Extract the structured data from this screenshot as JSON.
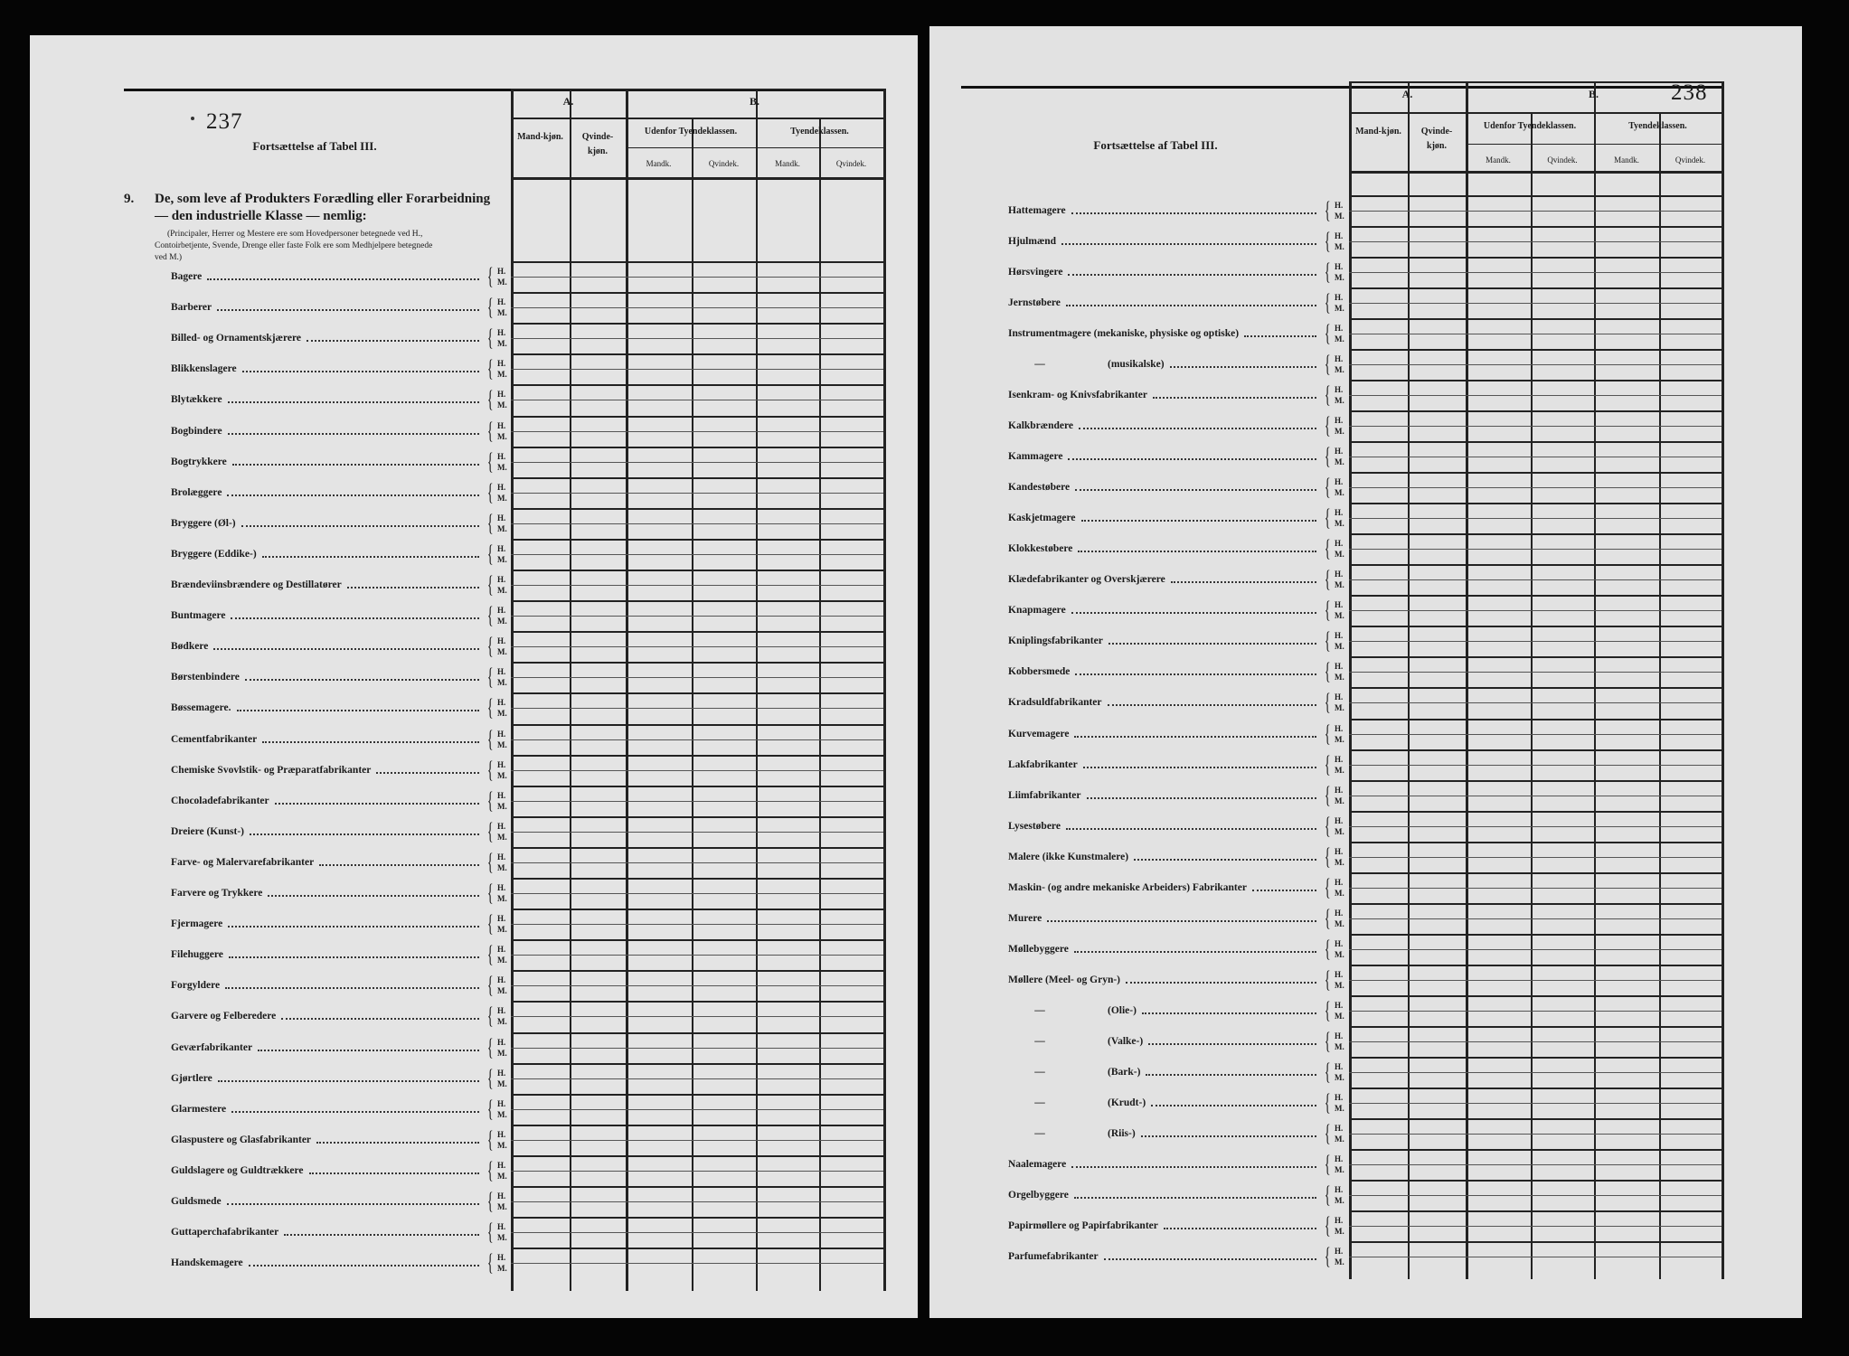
{
  "left_page": {
    "page_number": "237",
    "continuation": "Fortsættelse af Tabel III.",
    "section_number": "9.",
    "section_heading_1": "De, som leve af Produkters Forædling eller Forarbeidning",
    "section_heading_2": "— den industrielle Klasse — nemlig:",
    "note_1": "(Principaler, Herrer og Mestere ere som Hovedpersoner betegnede ved H.,",
    "note_2": "Contoirbetjente, Svende, Drenge eller faste Folk ere som Medhjelpere betegnede",
    "note_3": "ved M.)",
    "rows": [
      {
        "label": "Bagere"
      },
      {
        "label": "Barberer"
      },
      {
        "label": "Billed- og Ornamentskjærere"
      },
      {
        "label": "Blikkenslagere"
      },
      {
        "label": "Blytækkere"
      },
      {
        "label": "Bogbindere"
      },
      {
        "label": "Bogtrykkere"
      },
      {
        "label": "Brolæggere"
      },
      {
        "label": "Bryggere (Øl-)"
      },
      {
        "label": "Bryggere (Eddike-)"
      },
      {
        "label": "Brændeviinsbrændere og Destillatører"
      },
      {
        "label": "Buntmagere"
      },
      {
        "label": "Bødkere"
      },
      {
        "label": "Børstenbindere"
      },
      {
        "label": "Bøssemagere."
      },
      {
        "label": "Cementfabrikanter"
      },
      {
        "label": "Chemiske Svovlstik- og Præparatfabrikanter"
      },
      {
        "label": "Chocoladefabrikanter"
      },
      {
        "label": "Dreiere (Kunst-)"
      },
      {
        "label": "Farve- og Malervarefabrikanter"
      },
      {
        "label": "Farvere og Trykkere"
      },
      {
        "label": "Fjermagere"
      },
      {
        "label": "Filehuggere"
      },
      {
        "label": "Forgyldere"
      },
      {
        "label": "Garvere og Felberedere"
      },
      {
        "label": "Geværfabrikanter"
      },
      {
        "label": "Gjørtlere"
      },
      {
        "label": "Glarmestere"
      },
      {
        "label": "Glaspustere og Glasfabrikanter"
      },
      {
        "label": "Guldslagere og Guldtrækkere"
      },
      {
        "label": "Guldsmede"
      },
      {
        "label": "Guttaperchafabrikanter"
      },
      {
        "label": "Handskemagere"
      }
    ]
  },
  "right_page": {
    "page_number": "238",
    "continuation": "Fortsættelse af Tabel III.",
    "rows": [
      {
        "label": "Hattemagere"
      },
      {
        "label": "Hjulmænd"
      },
      {
        "label": "Hørsvingere"
      },
      {
        "label": "Jernstøbere"
      },
      {
        "label": "Instrumentmagere (mekaniske, physiske og optiske)"
      },
      {
        "dash": "—",
        "label": "(musikalske)"
      },
      {
        "label": "Isenkram- og Knivsfabrikanter"
      },
      {
        "label": "Kalkbrændere"
      },
      {
        "label": "Kammagere"
      },
      {
        "label": "Kandestøbere"
      },
      {
        "label": "Kaskjetmagere"
      },
      {
        "label": "Klokkestøbere"
      },
      {
        "label": "Klædefabrikanter og Overskjærere"
      },
      {
        "label": "Knapmagere"
      },
      {
        "label": "Kniplingsfabrikanter"
      },
      {
        "label": "Kobbersmede"
      },
      {
        "label": "Kradsuldfabrikanter"
      },
      {
        "label": "Kurvemagere"
      },
      {
        "label": "Lakfabrikanter"
      },
      {
        "label": "Liimfabrikanter"
      },
      {
        "label": "Lysestøbere"
      },
      {
        "label": "Malere (ikke Kunstmalere)"
      },
      {
        "label": "Maskin- (og andre mekaniske Arbeiders) Fabrikanter"
      },
      {
        "label": "Murere"
      },
      {
        "label": "Møllebyggere"
      },
      {
        "label": "Møllere (Meel- og Gryn-)"
      },
      {
        "dash": "—",
        "label": "(Olie-)"
      },
      {
        "dash": "—",
        "label": "(Valke-)"
      },
      {
        "dash": "—",
        "label": "(Bark-)"
      },
      {
        "dash": "—",
        "label": "(Krudt-)"
      },
      {
        "dash": "—",
        "label": "(Riis-)"
      },
      {
        "label": "Naalemagere"
      },
      {
        "label": "Orgelbyggere"
      },
      {
        "label": "Papirmøllere og Papirfabrikanter"
      },
      {
        "label": "Parfumefabrikanter"
      }
    ]
  },
  "columns": {
    "group_a": "A.",
    "group_b": "B.",
    "a_male": "Mand-kjøn.",
    "a_female": "Qvinde-kjøn.",
    "b_outside": "Udenfor Tyendeklassen.",
    "b_servants": "Tyendeklassen.",
    "male_short": "Mandk.",
    "female_short": "Qvindek."
  },
  "row_markers": {
    "head": "H.",
    "helper": "M."
  },
  "colors": {
    "background": "#050505",
    "paper": "#e4e4e4",
    "ink": "#1a1a1a"
  }
}
